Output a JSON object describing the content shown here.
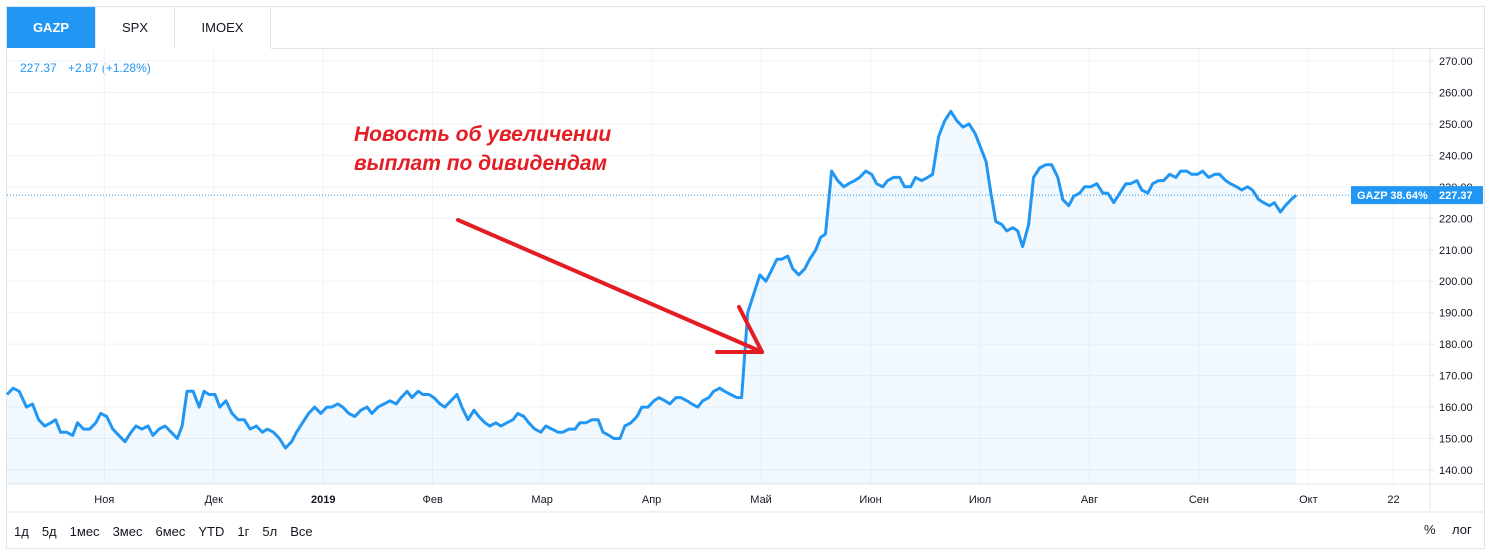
{
  "tabs": [
    {
      "label": "GAZP",
      "active": true
    },
    {
      "label": "SPX",
      "active": false
    },
    {
      "label": "IMOEX",
      "active": false
    }
  ],
  "legend": {
    "price": "227.37",
    "change": "+2.87 (+1.28%)"
  },
  "annotation": {
    "line1": "Новость об увеличении",
    "line2": "выплат по дивидендам"
  },
  "ranges": [
    "1д",
    "5д",
    "1мес",
    "3мес",
    "6мес",
    "YTD",
    "1г",
    "5л",
    "Все"
  ],
  "controls": {
    "percent": "%",
    "log": "лог"
  },
  "colors": {
    "line": "#2196f3",
    "accent": "#2196f3",
    "annotation": "#e41c23"
  },
  "chart_data": {
    "type": "area",
    "series_name": "GAZP",
    "last_label": "GAZP 38.64%",
    "last_price": "227.37",
    "y_ticks": [
      "140.00",
      "150.00",
      "160.00",
      "170.00",
      "180.00",
      "190.00",
      "200.00",
      "210.00",
      "220.00",
      "230.00",
      "240.00",
      "250.00",
      "260.00",
      "270.00"
    ],
    "ylim": [
      140,
      270
    ],
    "x_ticks": [
      {
        "label": "Ноя",
        "x": 0.08
      },
      {
        "label": "Дек",
        "x": 0.17
      },
      {
        "label": "2019",
        "x": 0.26
      },
      {
        "label": "Фев",
        "x": 0.35
      },
      {
        "label": "Мар",
        "x": 0.44
      },
      {
        "label": "Апр",
        "x": 0.53
      },
      {
        "label": "Май",
        "x": 0.62
      },
      {
        "label": "Июн",
        "x": 0.71
      },
      {
        "label": "Июл",
        "x": 0.8
      },
      {
        "label": "Авг",
        "x": 0.89
      },
      {
        "label": "Сен",
        "x": 0.98
      },
      {
        "label": "Окт",
        "x": 1.07
      },
      {
        "label": "22",
        "x": 1.14
      }
    ],
    "xlim": [
      0,
      1.17
    ],
    "points": [
      [
        0.0,
        164
      ],
      [
        0.005,
        166
      ],
      [
        0.01,
        165
      ],
      [
        0.016,
        160
      ],
      [
        0.021,
        161
      ],
      [
        0.026,
        156
      ],
      [
        0.031,
        154
      ],
      [
        0.036,
        155
      ],
      [
        0.04,
        156
      ],
      [
        0.044,
        152
      ],
      [
        0.049,
        152
      ],
      [
        0.054,
        151
      ],
      [
        0.058,
        155
      ],
      [
        0.063,
        153
      ],
      [
        0.068,
        153
      ],
      [
        0.073,
        155
      ],
      [
        0.077,
        158
      ],
      [
        0.082,
        157
      ],
      [
        0.087,
        153
      ],
      [
        0.092,
        151
      ],
      [
        0.097,
        149
      ],
      [
        0.102,
        152
      ],
      [
        0.106,
        154
      ],
      [
        0.111,
        153
      ],
      [
        0.116,
        154
      ],
      [
        0.12,
        151
      ],
      [
        0.125,
        153
      ],
      [
        0.13,
        154
      ],
      [
        0.135,
        152
      ],
      [
        0.14,
        150
      ],
      [
        0.144,
        154
      ],
      [
        0.148,
        165
      ],
      [
        0.153,
        165
      ],
      [
        0.158,
        160
      ],
      [
        0.162,
        165
      ],
      [
        0.166,
        164
      ],
      [
        0.171,
        164
      ],
      [
        0.175,
        160
      ],
      [
        0.18,
        162
      ],
      [
        0.185,
        158
      ],
      [
        0.19,
        156
      ],
      [
        0.195,
        156
      ],
      [
        0.2,
        153
      ],
      [
        0.205,
        154
      ],
      [
        0.21,
        152
      ],
      [
        0.214,
        153
      ],
      [
        0.219,
        152
      ],
      [
        0.224,
        150
      ],
      [
        0.229,
        147
      ],
      [
        0.234,
        149
      ],
      [
        0.238,
        152
      ],
      [
        0.243,
        155
      ],
      [
        0.248,
        158
      ],
      [
        0.253,
        160
      ],
      [
        0.258,
        158
      ],
      [
        0.263,
        160
      ],
      [
        0.267,
        160
      ],
      [
        0.272,
        161
      ],
      [
        0.276,
        160
      ],
      [
        0.281,
        158
      ],
      [
        0.286,
        157
      ],
      [
        0.291,
        159
      ],
      [
        0.296,
        160
      ],
      [
        0.3,
        158
      ],
      [
        0.305,
        160
      ],
      [
        0.31,
        161
      ],
      [
        0.315,
        162
      ],
      [
        0.32,
        161
      ],
      [
        0.324,
        163
      ],
      [
        0.329,
        165
      ],
      [
        0.333,
        163
      ],
      [
        0.338,
        165
      ],
      [
        0.342,
        164
      ],
      [
        0.347,
        164
      ],
      [
        0.351,
        163
      ],
      [
        0.356,
        161
      ],
      [
        0.36,
        160
      ],
      [
        0.365,
        162
      ],
      [
        0.37,
        164
      ],
      [
        0.374,
        160
      ],
      [
        0.379,
        156
      ],
      [
        0.384,
        159
      ],
      [
        0.388,
        157
      ],
      [
        0.393,
        155
      ],
      [
        0.397,
        154
      ],
      [
        0.402,
        155
      ],
      [
        0.406,
        154
      ],
      [
        0.411,
        155
      ],
      [
        0.416,
        156
      ],
      [
        0.42,
        158
      ],
      [
        0.425,
        157
      ],
      [
        0.429,
        155
      ],
      [
        0.434,
        153
      ],
      [
        0.439,
        152
      ],
      [
        0.443,
        154
      ],
      [
        0.448,
        153
      ],
      [
        0.453,
        152
      ],
      [
        0.457,
        152
      ],
      [
        0.462,
        153
      ],
      [
        0.467,
        153
      ],
      [
        0.471,
        155
      ],
      [
        0.476,
        155
      ],
      [
        0.481,
        156
      ],
      [
        0.486,
        156
      ],
      [
        0.49,
        152
      ],
      [
        0.495,
        151
      ],
      [
        0.499,
        150
      ],
      [
        0.504,
        150
      ],
      [
        0.508,
        154
      ],
      [
        0.513,
        155
      ],
      [
        0.518,
        157
      ],
      [
        0.522,
        160
      ],
      [
        0.527,
        160
      ],
      [
        0.532,
        162
      ],
      [
        0.536,
        163
      ],
      [
        0.541,
        162
      ],
      [
        0.545,
        161
      ],
      [
        0.55,
        163
      ],
      [
        0.554,
        163
      ],
      [
        0.559,
        162
      ],
      [
        0.563,
        161
      ],
      [
        0.568,
        160
      ],
      [
        0.572,
        162
      ],
      [
        0.577,
        163
      ],
      [
        0.581,
        165
      ],
      [
        0.586,
        166
      ],
      [
        0.59,
        165
      ],
      [
        0.595,
        164
      ],
      [
        0.6,
        163
      ],
      [
        0.604,
        163
      ],
      [
        0.609,
        190
      ],
      [
        0.614,
        196
      ],
      [
        0.619,
        202
      ],
      [
        0.624,
        200
      ],
      [
        0.628,
        203
      ],
      [
        0.633,
        207
      ],
      [
        0.637,
        207
      ],
      [
        0.642,
        208
      ],
      [
        0.646,
        204
      ],
      [
        0.651,
        202
      ],
      [
        0.656,
        204
      ],
      [
        0.66,
        207
      ],
      [
        0.665,
        210
      ],
      [
        0.669,
        214
      ],
      [
        0.673,
        215
      ],
      [
        0.678,
        235
      ],
      [
        0.683,
        232
      ],
      [
        0.688,
        230
      ],
      [
        0.692,
        231
      ],
      [
        0.697,
        232
      ],
      [
        0.701,
        233
      ],
      [
        0.706,
        235
      ],
      [
        0.711,
        234
      ],
      [
        0.715,
        231
      ],
      [
        0.72,
        230
      ],
      [
        0.724,
        232
      ],
      [
        0.729,
        233
      ],
      [
        0.734,
        233
      ],
      [
        0.738,
        230
      ],
      [
        0.743,
        230
      ],
      [
        0.747,
        233
      ],
      [
        0.752,
        232
      ],
      [
        0.757,
        233
      ],
      [
        0.761,
        234
      ],
      [
        0.766,
        246
      ],
      [
        0.771,
        251
      ],
      [
        0.776,
        254
      ],
      [
        0.781,
        251
      ],
      [
        0.786,
        249
      ],
      [
        0.791,
        250
      ],
      [
        0.796,
        247
      ],
      [
        0.8,
        243
      ],
      [
        0.805,
        238
      ],
      [
        0.809,
        228
      ],
      [
        0.813,
        219
      ],
      [
        0.818,
        218
      ],
      [
        0.822,
        216
      ],
      [
        0.827,
        217
      ],
      [
        0.831,
        216
      ],
      [
        0.835,
        211
      ],
      [
        0.84,
        218
      ],
      [
        0.844,
        233
      ],
      [
        0.849,
        236
      ],
      [
        0.854,
        237
      ],
      [
        0.859,
        237
      ],
      [
        0.864,
        233
      ],
      [
        0.868,
        226
      ],
      [
        0.873,
        224
      ],
      [
        0.877,
        227
      ],
      [
        0.882,
        228
      ],
      [
        0.886,
        230
      ],
      [
        0.891,
        230
      ],
      [
        0.896,
        231
      ],
      [
        0.901,
        228
      ],
      [
        0.905,
        228
      ],
      [
        0.91,
        225
      ],
      [
        0.915,
        228
      ],
      [
        0.92,
        231
      ],
      [
        0.924,
        231
      ],
      [
        0.929,
        232
      ],
      [
        0.933,
        229
      ],
      [
        0.938,
        228
      ],
      [
        0.942,
        231
      ],
      [
        0.947,
        232
      ],
      [
        0.951,
        232
      ],
      [
        0.956,
        234
      ],
      [
        0.961,
        233
      ],
      [
        0.965,
        235
      ],
      [
        0.97,
        235
      ],
      [
        0.974,
        234
      ],
      [
        0.979,
        234
      ],
      [
        0.983,
        235
      ],
      [
        0.988,
        233
      ],
      [
        0.993,
        234
      ],
      [
        0.997,
        234
      ],
      [
        1.002,
        232
      ],
      [
        1.006,
        231
      ],
      [
        1.011,
        230
      ],
      [
        1.015,
        229
      ],
      [
        1.02,
        230
      ],
      [
        1.024,
        229
      ],
      [
        1.029,
        226
      ],
      [
        1.033,
        225
      ],
      [
        1.038,
        224
      ],
      [
        1.042,
        225
      ],
      [
        1.047,
        222
      ],
      [
        1.051,
        224
      ],
      [
        1.056,
        226
      ],
      [
        1.06,
        227.37
      ]
    ]
  }
}
